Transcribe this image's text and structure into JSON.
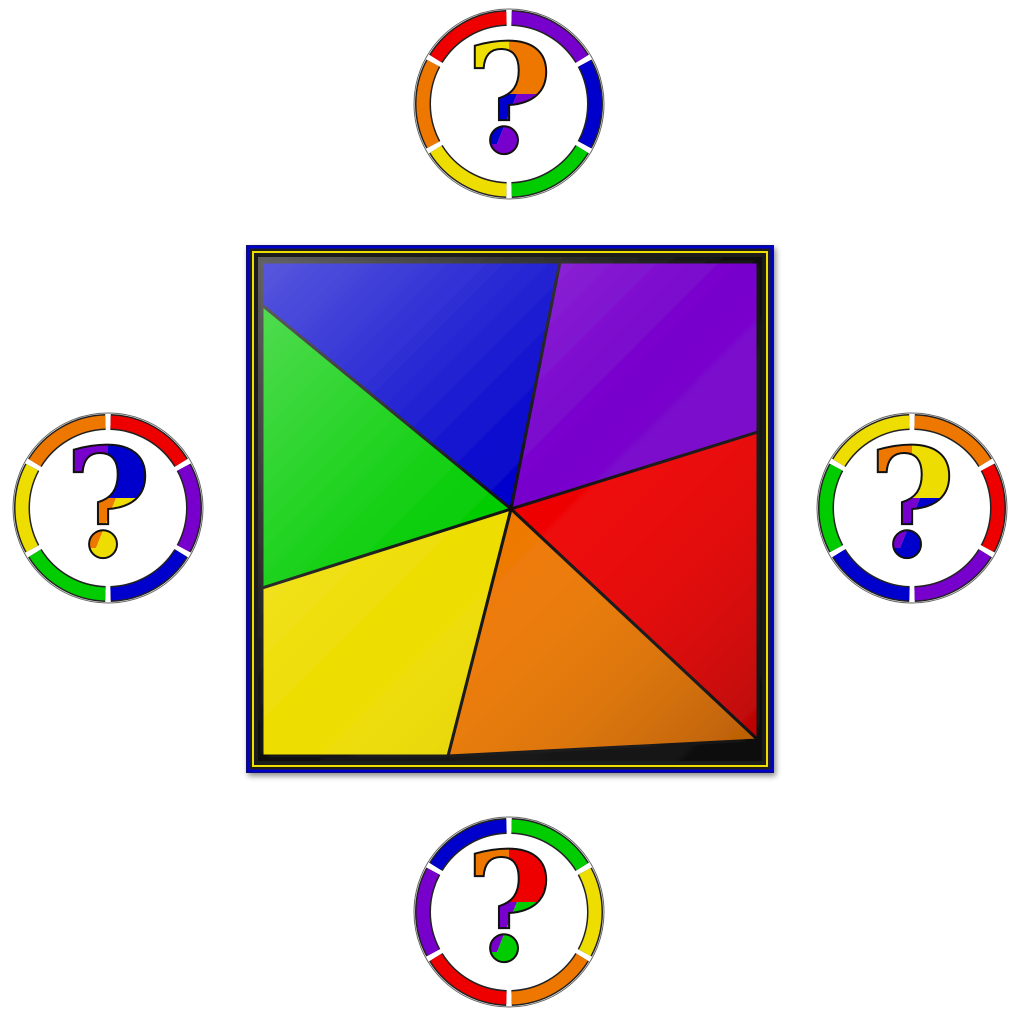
{
  "colors": {
    "red": "#ee0000",
    "orange": "#ee7700",
    "yellow": "#eedd00",
    "green": "#00cc00",
    "blue": "#0000cc",
    "violet": "#7700cc"
  },
  "puzzle": {
    "wedges": [
      {
        "color": "blue"
      },
      {
        "color": "violet"
      },
      {
        "color": "red"
      },
      {
        "color": "orange"
      },
      {
        "color": "yellow"
      },
      {
        "color": "green"
      }
    ]
  },
  "hint_buttons": [
    {
      "id": "top",
      "glyph": "?",
      "ring": [
        "violet",
        "blue",
        "green",
        "yellow",
        "orange",
        "red"
      ],
      "glyph_colors": [
        "yellow",
        "orange",
        "blue",
        "violet"
      ]
    },
    {
      "id": "left",
      "glyph": "?",
      "ring": [
        "red",
        "violet",
        "blue",
        "green",
        "yellow",
        "orange"
      ],
      "glyph_colors": [
        "violet",
        "blue",
        "orange",
        "yellow"
      ]
    },
    {
      "id": "right",
      "glyph": "?",
      "ring": [
        "orange",
        "red",
        "violet",
        "blue",
        "green",
        "yellow"
      ],
      "glyph_colors": [
        "orange",
        "yellow",
        "violet",
        "blue"
      ]
    },
    {
      "id": "bottom",
      "glyph": "?",
      "ring": [
        "green",
        "yellow",
        "orange",
        "red",
        "violet",
        "blue"
      ],
      "glyph_colors": [
        "orange",
        "red",
        "violet",
        "green"
      ]
    }
  ]
}
